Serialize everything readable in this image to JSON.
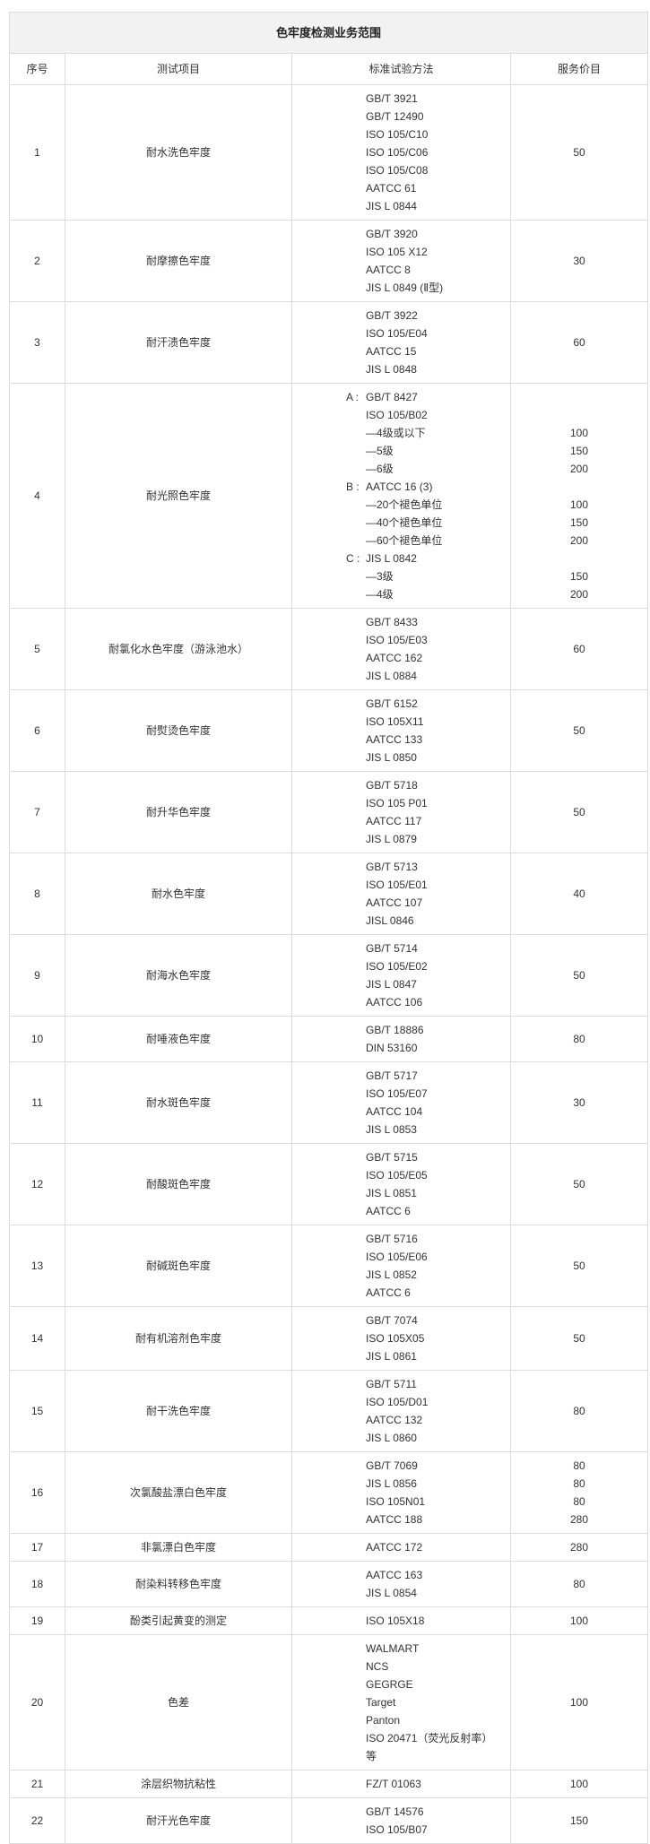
{
  "title": "色牢度检测业务范围",
  "headers": [
    "序号",
    "测试项目",
    "标准试验方法",
    "服务价目"
  ],
  "rows": [
    {
      "no": "1",
      "item": "耐水洗色牢度",
      "methods": [
        {
          "text": "GB/T 3921"
        },
        {
          "text": "GB/T 12490"
        },
        {
          "text": "ISO 105/C10"
        },
        {
          "text": "ISO 105/C06"
        },
        {
          "text": "ISO 105/C08"
        },
        {
          "text": "AATCC 61"
        },
        {
          "text": "JIS L 0844"
        }
      ],
      "prices": [
        "50"
      ]
    },
    {
      "no": "2",
      "item": "耐摩擦色牢度",
      "methods": [
        {
          "text": "GB/T 3920"
        },
        {
          "text": "ISO 105 X12"
        },
        {
          "text": "AATCC 8"
        },
        {
          "text": "JIS L 0849 (Ⅱ型)"
        }
      ],
      "prices": [
        "30"
      ]
    },
    {
      "no": "3",
      "item": "耐汗渍色牢度",
      "methods": [
        {
          "text": "GB/T 3922"
        },
        {
          "text": "ISO 105/E04"
        },
        {
          "text": "AATCC 15"
        },
        {
          "text": "JIS L 0848"
        }
      ],
      "prices": [
        "60"
      ]
    },
    {
      "no": "4",
      "item": "耐光照色牢度",
      "methods": [
        {
          "prefix": "A :",
          "text": "GB/T 8427"
        },
        {
          "text": "ISO 105/B02"
        },
        {
          "text": "—4级或以下"
        },
        {
          "text": "—5级"
        },
        {
          "text": "—6级"
        },
        {
          "prefix": "B :",
          "text": "AATCC 16 (3)"
        },
        {
          "text": "—20个褪色单位"
        },
        {
          "text": "—40个褪色单位"
        },
        {
          "text": "—60个褪色单位"
        },
        {
          "prefix": "C :",
          "text": "JIS L 0842"
        },
        {
          "text": "—3级"
        },
        {
          "text": "—4级"
        }
      ],
      "prices": [
        "",
        "",
        "100",
        "150",
        "200",
        "",
        "100",
        "150",
        "200",
        "",
        "150",
        "200"
      ]
    },
    {
      "no": "5",
      "item": "耐氯化水色牢度（游泳池水）",
      "methods": [
        {
          "text": "GB/T 8433"
        },
        {
          "text": "ISO 105/E03"
        },
        {
          "text": "AATCC 162"
        },
        {
          "text": "JIS L 0884"
        }
      ],
      "prices": [
        "60"
      ]
    },
    {
      "no": "6",
      "item": "耐熨烫色牢度",
      "methods": [
        {
          "text": "GB/T 6152"
        },
        {
          "text": "ISO 105X11"
        },
        {
          "text": "AATCC 133"
        },
        {
          "text": "JIS L 0850"
        }
      ],
      "prices": [
        "50"
      ]
    },
    {
      "no": "7",
      "item": "耐升华色牢度",
      "methods": [
        {
          "text": "GB/T 5718"
        },
        {
          "text": "ISO 105 P01"
        },
        {
          "text": "AATCC 117"
        },
        {
          "text": "JIS L 0879"
        }
      ],
      "prices": [
        "50"
      ]
    },
    {
      "no": "8",
      "item": "耐水色牢度",
      "methods": [
        {
          "text": "GB/T 5713"
        },
        {
          "text": "ISO 105/E01"
        },
        {
          "text": "AATCC 107"
        },
        {
          "text": "JISL 0846"
        }
      ],
      "prices": [
        "40"
      ]
    },
    {
      "no": "9",
      "item": "耐海水色牢度",
      "methods": [
        {
          "text": "GB/T 5714"
        },
        {
          "text": "ISO 105/E02"
        },
        {
          "text": "JIS L 0847"
        },
        {
          "text": "AATCC 106"
        }
      ],
      "prices": [
        "50"
      ]
    },
    {
      "no": "10",
      "item": "耐唾液色牢度",
      "methods": [
        {
          "text": "GB/T 18886"
        },
        {
          "text": "DIN 53160"
        }
      ],
      "prices": [
        "80"
      ]
    },
    {
      "no": "11",
      "item": "耐水斑色牢度",
      "methods": [
        {
          "text": "GB/T 5717"
        },
        {
          "text": "ISO 105/E07"
        },
        {
          "text": "AATCC 104"
        },
        {
          "text": "JIS L 0853"
        }
      ],
      "prices": [
        "30"
      ]
    },
    {
      "no": "12",
      "item": "耐酸斑色牢度",
      "methods": [
        {
          "text": "GB/T 5715"
        },
        {
          "text": "ISO 105/E05"
        },
        {
          "text": "JIS L 0851"
        },
        {
          "text": "AATCC 6"
        }
      ],
      "prices": [
        "50"
      ]
    },
    {
      "no": "13",
      "item": "耐碱斑色牢度",
      "methods": [
        {
          "text": "GB/T 5716"
        },
        {
          "text": "ISO 105/E06"
        },
        {
          "text": "JIS L 0852"
        },
        {
          "text": "AATCC 6"
        }
      ],
      "prices": [
        "50"
      ]
    },
    {
      "no": "14",
      "item": "耐有机溶剂色牢度",
      "methods": [
        {
          "text": "GB/T 7074"
        },
        {
          "text": "ISO 105X05"
        },
        {
          "text": "JIS L 0861"
        }
      ],
      "prices": [
        "50"
      ]
    },
    {
      "no": "15",
      "item": "耐干洗色牢度",
      "methods": [
        {
          "text": "GB/T 5711"
        },
        {
          "text": "ISO 105/D01"
        },
        {
          "text": "AATCC 132"
        },
        {
          "text": "JIS L 0860"
        }
      ],
      "prices": [
        "80"
      ]
    },
    {
      "no": "16",
      "item": "次氯酸盐漂白色牢度",
      "methods": [
        {
          "text": "GB/T 7069"
        },
        {
          "text": "JIS L 0856"
        },
        {
          "text": "ISO 105N01"
        },
        {
          "text": "AATCC 188"
        }
      ],
      "prices": [
        "80",
        "80",
        "80",
        "280"
      ]
    },
    {
      "no": "17",
      "item": "非氯漂白色牢度",
      "methods": [
        {
          "text": "AATCC 172"
        }
      ],
      "prices": [
        "280"
      ]
    },
    {
      "no": "18",
      "item": "耐染料转移色牢度",
      "methods": [
        {
          "text": "AATCC 163"
        },
        {
          "text": "JIS L 0854"
        }
      ],
      "prices": [
        "80"
      ]
    },
    {
      "no": "19",
      "item": "酚类引起黄变的测定",
      "methods": [
        {
          "text": "ISO 105X18"
        }
      ],
      "prices": [
        "100"
      ]
    },
    {
      "no": "20",
      "item": "色差",
      "methods": [
        {
          "text": "WALMART"
        },
        {
          "text": "NCS"
        },
        {
          "text": "GEGRGE"
        },
        {
          "text": "Target"
        },
        {
          "text": "Panton"
        },
        {
          "text": "ISO 20471（荧光反射率）"
        },
        {
          "text": "等"
        }
      ],
      "prices": [
        "100"
      ]
    },
    {
      "no": "21",
      "item": "涂层织物抗粘性",
      "methods": [
        {
          "text": "FZ/T 01063"
        }
      ],
      "prices": [
        "100"
      ]
    },
    {
      "no": "22",
      "item": "耐汗光色牢度",
      "methods": [
        {
          "text": "GB/T 14576"
        },
        {
          "text": "ISO 105/B07"
        }
      ],
      "prices": [
        "150"
      ]
    }
  ]
}
